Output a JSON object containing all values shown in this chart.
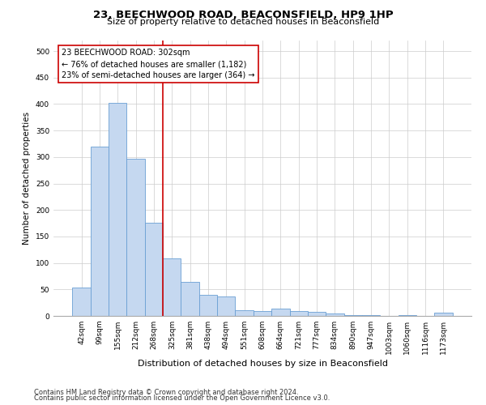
{
  "title": "23, BEECHWOOD ROAD, BEACONSFIELD, HP9 1HP",
  "subtitle": "Size of property relative to detached houses in Beaconsfield",
  "xlabel": "Distribution of detached houses by size in Beaconsfield",
  "ylabel": "Number of detached properties",
  "categories": [
    "42sqm",
    "99sqm",
    "155sqm",
    "212sqm",
    "268sqm",
    "325sqm",
    "381sqm",
    "438sqm",
    "494sqm",
    "551sqm",
    "608sqm",
    "664sqm",
    "721sqm",
    "777sqm",
    "834sqm",
    "890sqm",
    "947sqm",
    "1003sqm",
    "1060sqm",
    "1116sqm",
    "1173sqm"
  ],
  "values": [
    53,
    320,
    403,
    297,
    176,
    108,
    64,
    40,
    36,
    10,
    9,
    14,
    9,
    7,
    4,
    2,
    1,
    0,
    1,
    0,
    6
  ],
  "bar_color": "#C5D8F0",
  "bar_edge_color": "#6A9FD4",
  "vline_color": "#CC0000",
  "annotation_text": "23 BEECHWOOD ROAD: 302sqm\n← 76% of detached houses are smaller (1,182)\n23% of semi-detached houses are larger (364) →",
  "annotation_box_color": "#CC0000",
  "footnote1": "Contains HM Land Registry data © Crown copyright and database right 2024.",
  "footnote2": "Contains public sector information licensed under the Open Government Licence v3.0.",
  "ylim": [
    0,
    520
  ],
  "yticks": [
    0,
    50,
    100,
    150,
    200,
    250,
    300,
    350,
    400,
    450,
    500
  ],
  "background_color": "#FFFFFF",
  "grid_color": "#CCCCCC",
  "title_fontsize": 9.5,
  "subtitle_fontsize": 8,
  "xlabel_fontsize": 8,
  "ylabel_fontsize": 7.5,
  "tick_fontsize": 6.5,
  "annotation_fontsize": 7,
  "footnote_fontsize": 6
}
